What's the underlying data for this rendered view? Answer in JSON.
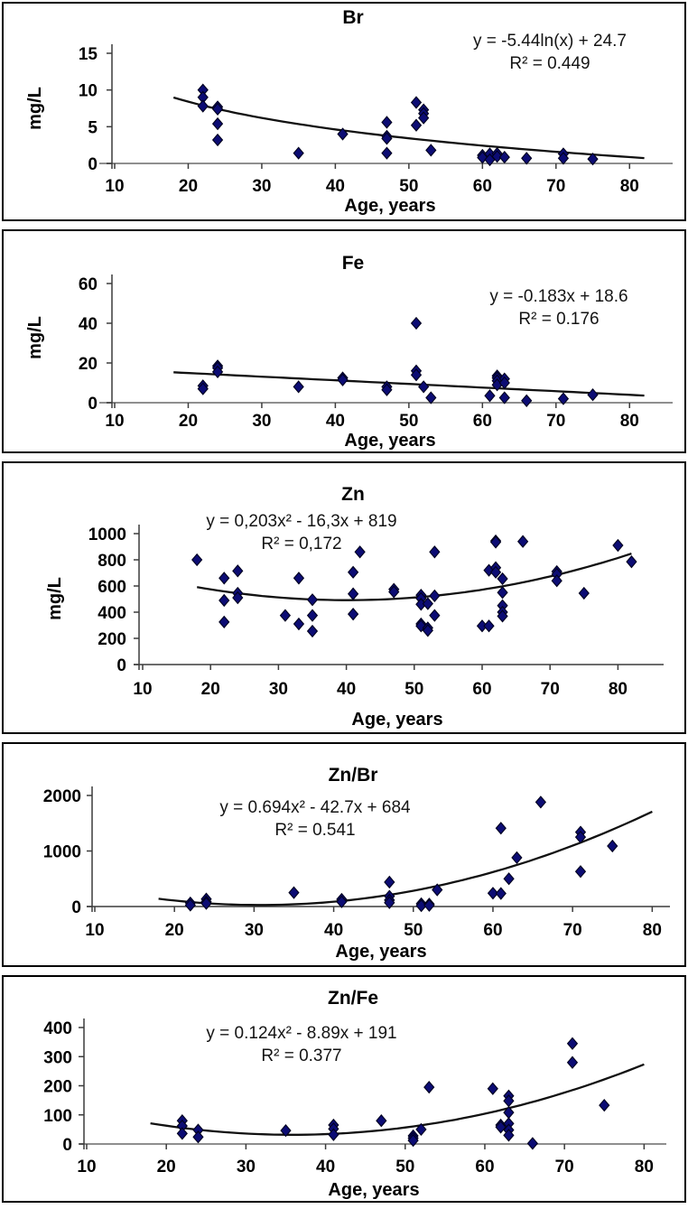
{
  "page": {
    "background": "#ffffff",
    "panel_border_color": "#000000"
  },
  "chart_data": [
    {
      "type": "scatter",
      "title": "Br",
      "equation": "y = -5.44ln(x) + 24.7",
      "r2_label": "R² = 0.449",
      "xlabel": "Age, years",
      "ylabel": "mg/L",
      "xlim": [
        10,
        85
      ],
      "ylim": [
        0,
        15
      ],
      "x_ticks": [
        10,
        20,
        30,
        40,
        50,
        60,
        70,
        80
      ],
      "y_ticks": [
        0,
        5,
        10,
        15
      ],
      "marker_color": "#0c0c74",
      "marker_stroke": "#00001e",
      "trend_color": "#111111",
      "trend": {
        "kind": "log",
        "a": -5.44,
        "b": 24.7,
        "x_start": 18,
        "x_end": 82
      },
      "points": [
        [
          22,
          10
        ],
        [
          22,
          9
        ],
        [
          22,
          7.8
        ],
        [
          24,
          7.7
        ],
        [
          24,
          7.4
        ],
        [
          24,
          5.4
        ],
        [
          24,
          3.2
        ],
        [
          35,
          1.4
        ],
        [
          41,
          4.0
        ],
        [
          47,
          5.6
        ],
        [
          47,
          3.7
        ],
        [
          47,
          3.4
        ],
        [
          47,
          1.4
        ],
        [
          51,
          8.3
        ],
        [
          51,
          5.2
        ],
        [
          52,
          7.3
        ],
        [
          52,
          6.8
        ],
        [
          52,
          6.2
        ],
        [
          53,
          1.8
        ],
        [
          60,
          1.1
        ],
        [
          60,
          0.8
        ],
        [
          61,
          1.3
        ],
        [
          61,
          0.5
        ],
        [
          62,
          1.35
        ],
        [
          62,
          0.95
        ],
        [
          63,
          0.85
        ],
        [
          66,
          0.7
        ],
        [
          71,
          1.3
        ],
        [
          71,
          0.7
        ],
        [
          75,
          0.6
        ]
      ]
    },
    {
      "type": "scatter",
      "title": "Fe",
      "equation": "y = -0.183x + 18.6",
      "r2_label": "R² = 0.176",
      "xlabel": "Age, years",
      "ylabel": "mg/L",
      "xlim": [
        10,
        85
      ],
      "ylim": [
        0,
        60
      ],
      "x_ticks": [
        10,
        20,
        30,
        40,
        50,
        60,
        70,
        80
      ],
      "y_ticks": [
        0,
        20,
        40,
        60
      ],
      "marker_color": "#0c0c74",
      "marker_stroke": "#00001e",
      "trend_color": "#111111",
      "trend": {
        "kind": "linear",
        "a": -0.183,
        "b": 18.6,
        "x_start": 18,
        "x_end": 82
      },
      "points": [
        [
          22,
          8.5
        ],
        [
          22,
          7
        ],
        [
          24,
          18.5
        ],
        [
          24,
          17.5
        ],
        [
          24,
          15.5
        ],
        [
          35,
          8
        ],
        [
          41,
          12.5
        ],
        [
          41,
          11.5
        ],
        [
          47,
          8
        ],
        [
          47,
          6.5
        ],
        [
          51,
          40
        ],
        [
          51,
          16
        ],
        [
          51,
          14
        ],
        [
          52,
          8
        ],
        [
          53,
          2.5
        ],
        [
          61,
          3.5
        ],
        [
          62,
          13.5
        ],
        [
          62,
          12.5
        ],
        [
          62,
          11
        ],
        [
          62,
          9
        ],
        [
          63,
          12
        ],
        [
          63,
          10
        ],
        [
          63,
          2.5
        ],
        [
          66,
          1
        ],
        [
          71,
          2
        ],
        [
          75,
          4
        ]
      ]
    },
    {
      "type": "scatter",
      "title": "Zn",
      "equation": "y = 0,203x² - 16,3x + 819",
      "r2_label": "R² = 0,172",
      "xlabel": "Age, years",
      "ylabel": "mg/L",
      "xlim": [
        10,
        85
      ],
      "ylim": [
        0,
        1000
      ],
      "x_ticks": [
        10,
        20,
        30,
        40,
        50,
        60,
        70,
        80
      ],
      "y_ticks": [
        0,
        200,
        400,
        600,
        800,
        1000
      ],
      "marker_color": "#0c0c74",
      "marker_stroke": "#00001e",
      "trend_color": "#111111",
      "trend": {
        "kind": "poly2",
        "a": 0.203,
        "b": -16.3,
        "c": 819,
        "x_start": 18,
        "x_end": 82
      },
      "points": [
        [
          18,
          800
        ],
        [
          22,
          660
        ],
        [
          22,
          490
        ],
        [
          22,
          325
        ],
        [
          24,
          715
        ],
        [
          24,
          545
        ],
        [
          24,
          510
        ],
        [
          31,
          375
        ],
        [
          33,
          660
        ],
        [
          33,
          310
        ],
        [
          35,
          495
        ],
        [
          35,
          375
        ],
        [
          35,
          255
        ],
        [
          41,
          705
        ],
        [
          41,
          540
        ],
        [
          41,
          385
        ],
        [
          42,
          860
        ],
        [
          47,
          575
        ],
        [
          47,
          555
        ],
        [
          51,
          530
        ],
        [
          51,
          505
        ],
        [
          51,
          460
        ],
        [
          51,
          310
        ],
        [
          51,
          295
        ],
        [
          52,
          465
        ],
        [
          52,
          280
        ],
        [
          52,
          260
        ],
        [
          53,
          860
        ],
        [
          53,
          525
        ],
        [
          53,
          375
        ],
        [
          60,
          295
        ],
        [
          61,
          720
        ],
        [
          61,
          295
        ],
        [
          62,
          945
        ],
        [
          62,
          935
        ],
        [
          62,
          740
        ],
        [
          62,
          705
        ],
        [
          63,
          655
        ],
        [
          63,
          550
        ],
        [
          63,
          450
        ],
        [
          63,
          400
        ],
        [
          63,
          370
        ],
        [
          66,
          940
        ],
        [
          71,
          710
        ],
        [
          71,
          690
        ],
        [
          71,
          640
        ],
        [
          75,
          545
        ],
        [
          80,
          910
        ],
        [
          82,
          785
        ]
      ]
    },
    {
      "type": "scatter",
      "title": "Zn/Br",
      "equation": "y = 0.694x² - 42.7x + 684",
      "r2_label": "R² = 0.541",
      "xlabel": "Age, years",
      "ylabel": "",
      "xlim": [
        10,
        82
      ],
      "ylim": [
        0,
        2000
      ],
      "x_ticks": [
        10,
        20,
        30,
        40,
        50,
        60,
        70,
        80
      ],
      "y_ticks": [
        0,
        1000,
        2000
      ],
      "marker_color": "#0c0c74",
      "marker_stroke": "#00001e",
      "trend_color": "#111111",
      "trend": {
        "kind": "poly2",
        "a": 0.694,
        "b": -42.7,
        "c": 684,
        "x_start": 18,
        "x_end": 80
      },
      "points": [
        [
          22,
          65
        ],
        [
          22,
          25
        ],
        [
          24,
          135
        ],
        [
          24,
          85
        ],
        [
          24,
          55
        ],
        [
          35,
          250
        ],
        [
          41,
          130
        ],
        [
          41,
          85
        ],
        [
          47,
          440
        ],
        [
          47,
          185
        ],
        [
          47,
          115
        ],
        [
          47,
          70
        ],
        [
          51,
          50
        ],
        [
          51,
          15
        ],
        [
          52,
          45
        ],
        [
          52,
          20
        ],
        [
          53,
          300
        ],
        [
          60,
          240
        ],
        [
          61,
          1410
        ],
        [
          61,
          235
        ],
        [
          62,
          500
        ],
        [
          63,
          880
        ],
        [
          66,
          1880
        ],
        [
          71,
          1340
        ],
        [
          71,
          1250
        ],
        [
          71,
          630
        ],
        [
          75,
          1090
        ]
      ]
    },
    {
      "type": "scatter",
      "title": "Zn/Fe",
      "equation": "y = 0.124x² - 8.89x + 191",
      "r2_label": "R² = 0.377",
      "xlabel": "Age, years",
      "ylabel": "",
      "xlim": [
        10,
        82
      ],
      "ylim": [
        0,
        400
      ],
      "x_ticks": [
        10,
        20,
        30,
        40,
        50,
        60,
        70,
        80
      ],
      "y_ticks": [
        0,
        100,
        200,
        300,
        400
      ],
      "marker_color": "#0c0c74",
      "marker_stroke": "#00001e",
      "trend_color": "#111111",
      "trend": {
        "kind": "poly2",
        "a": 0.124,
        "b": -8.89,
        "c": 191,
        "x_start": 18,
        "x_end": 80
      },
      "points": [
        [
          22,
          80
        ],
        [
          22,
          62
        ],
        [
          22,
          36
        ],
        [
          24,
          48
        ],
        [
          24,
          24
        ],
        [
          35,
          46
        ],
        [
          41,
          65
        ],
        [
          41,
          52
        ],
        [
          41,
          32
        ],
        [
          47,
          80
        ],
        [
          51,
          28
        ],
        [
          51,
          20
        ],
        [
          51,
          12
        ],
        [
          52,
          50
        ],
        [
          53,
          195
        ],
        [
          61,
          190
        ],
        [
          62,
          65
        ],
        [
          62,
          58
        ],
        [
          63,
          165
        ],
        [
          63,
          148
        ],
        [
          63,
          108
        ],
        [
          63,
          70
        ],
        [
          63,
          48
        ],
        [
          63,
          30
        ],
        [
          66,
          2
        ],
        [
          71,
          345
        ],
        [
          71,
          280
        ],
        [
          75,
          133
        ]
      ]
    }
  ]
}
